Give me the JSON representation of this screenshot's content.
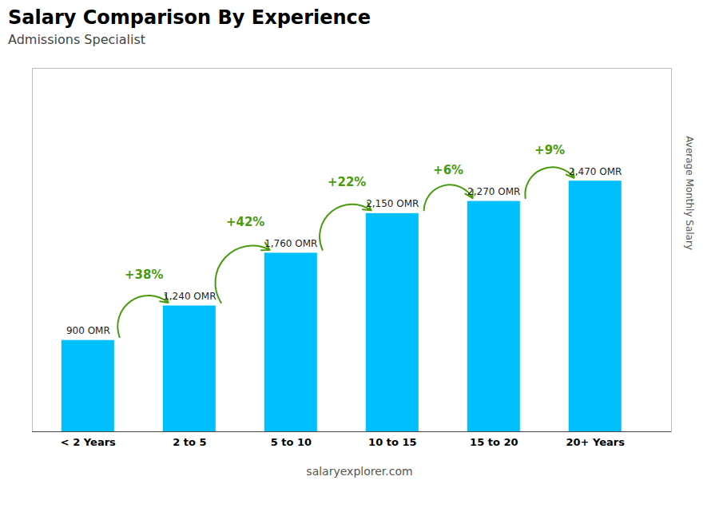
{
  "chart_data": {
    "type": "bar",
    "title": "Salary Comparison By Experience",
    "subtitle": "Admissions Specialist",
    "ylabel": "Average Monthly Salary",
    "footer": "salaryexplorer.com",
    "categories": [
      "< 2 Years",
      "2 to 5",
      "5 to 10",
      "10 to 15",
      "15 to 20",
      "20+ Years"
    ],
    "values": [
      900,
      1240,
      1760,
      2150,
      2270,
      2470
    ],
    "value_labels": [
      "900 OMR",
      "1,240 OMR",
      "1,760 OMR",
      "2,150 OMR",
      "2,270 OMR",
      "2,470 OMR"
    ],
    "data_labels": true,
    "color": "#00BFFF",
    "ylim": [
      0,
      3581.5
    ],
    "tick_labels": "x",
    "annotations": [
      {
        "from": 0,
        "to": 1,
        "text": "+38%"
      },
      {
        "from": 1,
        "to": 2,
        "text": "+42%"
      },
      {
        "from": 2,
        "to": 3,
        "text": "+22%"
      },
      {
        "from": 3,
        "to": 4,
        "text": "+6%"
      },
      {
        "from": 4,
        "to": 5,
        "text": "+9%"
      }
    ]
  }
}
